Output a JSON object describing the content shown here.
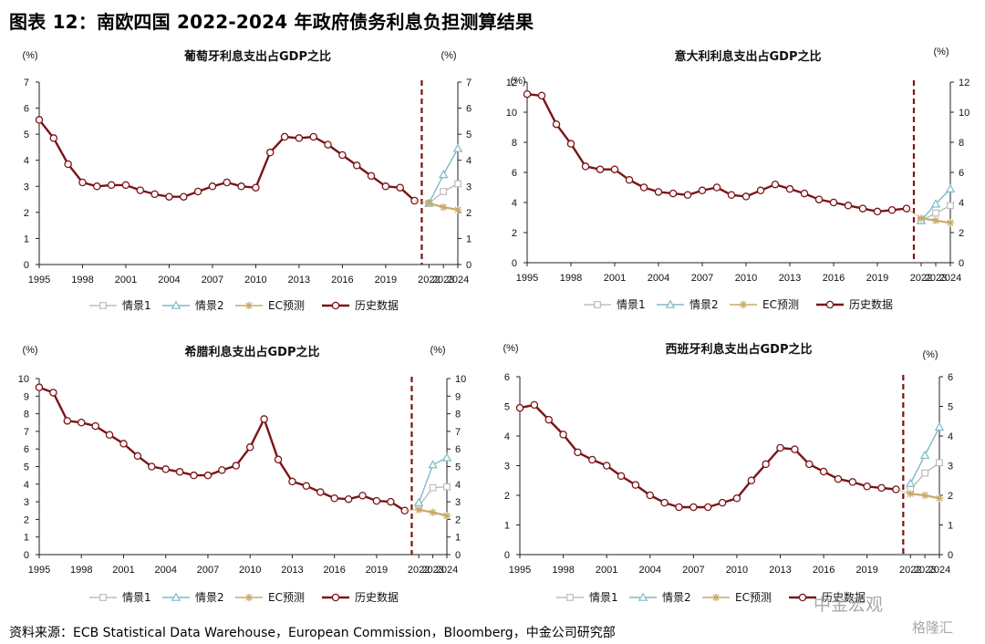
{
  "page": {
    "title": "图表 12：南欧四国 2022-2024 年政府债务利息负担测算结果",
    "source": "资料来源：ECB Statistical Data Warehouse，European Commission，Bloomberg，中金公司研究部",
    "watermark": "中金宏观",
    "watermark2": "格隆汇"
  },
  "colors": {
    "history": "#7b1416",
    "ec": "#c9a96a",
    "s1": "#bdbdbd",
    "s2": "#7fb9c9",
    "divider": "#7b1416"
  },
  "legend": [
    "情景1",
    "情景2",
    "EC预测",
    "历史数据"
  ],
  "chart_data": [
    {
      "type": "line",
      "title": "葡萄牙利息支出占GDP之比",
      "unit_left": "(%)",
      "unit_right": "(%)",
      "ylim": [
        0,
        7
      ],
      "yticks": [
        0,
        1,
        2,
        3,
        4,
        5,
        6,
        7
      ],
      "x_start": 1995,
      "x_end": 2024,
      "xticks": [
        1995,
        1998,
        2001,
        2004,
        2007,
        2010,
        2013,
        2016,
        2019,
        2022,
        2023,
        2024
      ],
      "divider": 2021.5,
      "series": [
        {
          "name": "历史数据",
          "x": [
            1995,
            1996,
            1997,
            1998,
            1999,
            2000,
            2001,
            2002,
            2003,
            2004,
            2005,
            2006,
            2007,
            2008,
            2009,
            2010,
            2011,
            2012,
            2013,
            2014,
            2015,
            2016,
            2017,
            2018,
            2019,
            2020,
            2021
          ],
          "values": [
            5.55,
            4.85,
            3.85,
            3.15,
            3.0,
            3.05,
            3.05,
            2.85,
            2.7,
            2.6,
            2.6,
            2.8,
            3.0,
            3.15,
            3.0,
            2.95,
            4.3,
            4.9,
            4.85,
            4.9,
            4.6,
            4.2,
            3.8,
            3.4,
            3.0,
            2.95,
            2.45
          ]
        },
        {
          "name": "EC预测",
          "x": [
            2022,
            2023,
            2024
          ],
          "values": [
            2.35,
            2.2,
            2.1
          ]
        },
        {
          "name": "情景1",
          "x": [
            2022,
            2023,
            2024
          ],
          "values": [
            2.35,
            2.8,
            3.1
          ]
        },
        {
          "name": "情景2",
          "x": [
            2022,
            2023,
            2024
          ],
          "values": [
            2.35,
            3.45,
            4.45
          ]
        }
      ]
    },
    {
      "type": "line",
      "title": "意大利利息支出占GDP之比",
      "unit_left": "(%)",
      "unit_right": "(%)",
      "ylim": [
        0,
        12
      ],
      "yticks": [
        0,
        2,
        4,
        6,
        8,
        10,
        12
      ],
      "x_start": 1995,
      "x_end": 2024,
      "xticks": [
        1995,
        1998,
        2001,
        2004,
        2007,
        2010,
        2013,
        2016,
        2019,
        2022,
        2023,
        2024
      ],
      "divider": 2021.5,
      "series": [
        {
          "name": "历史数据",
          "x": [
            1995,
            1996,
            1997,
            1998,
            1999,
            2000,
            2001,
            2002,
            2003,
            2004,
            2005,
            2006,
            2007,
            2008,
            2009,
            2010,
            2011,
            2012,
            2013,
            2014,
            2015,
            2016,
            2017,
            2018,
            2019,
            2020,
            2021
          ],
          "values": [
            11.2,
            11.1,
            9.2,
            7.9,
            6.4,
            6.2,
            6.2,
            5.5,
            5.0,
            4.7,
            4.6,
            4.5,
            4.8,
            5.0,
            4.5,
            4.4,
            4.8,
            5.2,
            4.9,
            4.6,
            4.2,
            4.0,
            3.8,
            3.6,
            3.4,
            3.5,
            3.6
          ]
        },
        {
          "name": "EC预测",
          "x": [
            2022,
            2023,
            2024
          ],
          "values": [
            2.95,
            2.8,
            2.65
          ]
        },
        {
          "name": "情景1",
          "x": [
            2022,
            2023,
            2024
          ],
          "values": [
            2.8,
            3.3,
            3.8
          ]
        },
        {
          "name": "情景2",
          "x": [
            2022,
            2023,
            2024
          ],
          "values": [
            2.8,
            3.9,
            4.9
          ]
        }
      ]
    },
    {
      "type": "line",
      "title": "希腊利息支出占GDP之比",
      "unit_left": "(%)",
      "unit_right": "(%)",
      "ylim": [
        0,
        10
      ],
      "yticks": [
        0,
        1,
        2,
        3,
        4,
        5,
        6,
        7,
        8,
        9,
        10
      ],
      "x_start": 1995,
      "x_end": 2024,
      "xticks": [
        1995,
        1998,
        2001,
        2004,
        2007,
        2010,
        2013,
        2016,
        2019,
        2022,
        2023,
        2024
      ],
      "divider": 2021.5,
      "series": [
        {
          "name": "历史数据",
          "x": [
            1995,
            1996,
            1997,
            1998,
            1999,
            2000,
            2001,
            2002,
            2003,
            2004,
            2005,
            2006,
            2007,
            2008,
            2009,
            2010,
            2011,
            2012,
            2013,
            2014,
            2015,
            2016,
            2017,
            2018,
            2019,
            2020,
            2021
          ],
          "values": [
            9.5,
            9.2,
            7.6,
            7.5,
            7.3,
            6.8,
            6.3,
            5.6,
            5.0,
            4.85,
            4.7,
            4.5,
            4.5,
            4.8,
            5.05,
            6.1,
            7.7,
            5.4,
            4.15,
            3.9,
            3.55,
            3.2,
            3.15,
            3.35,
            3.05,
            3.0,
            2.5
          ]
        },
        {
          "name": "EC预测",
          "x": [
            2022,
            2023,
            2024
          ],
          "values": [
            2.55,
            2.4,
            2.2
          ]
        },
        {
          "name": "情景1",
          "x": [
            2022,
            2023,
            2024
          ],
          "values": [
            2.75,
            3.8,
            3.85
          ]
        },
        {
          "name": "情景2",
          "x": [
            2022,
            2023,
            2024
          ],
          "values": [
            2.95,
            5.1,
            5.5
          ]
        }
      ]
    },
    {
      "type": "line",
      "title": "西班牙利息支出占GDP之比",
      "unit_left": "(%)",
      "unit_right": "(%)",
      "ylim": [
        0,
        6
      ],
      "yticks": [
        0,
        1,
        2,
        3,
        4,
        5,
        6
      ],
      "x_start": 1995,
      "x_end": 2024,
      "xticks": [
        1995,
        1998,
        2001,
        2004,
        2007,
        2010,
        2013,
        2016,
        2019,
        2022,
        2023,
        2024
      ],
      "divider": 2021.5,
      "series": [
        {
          "name": "历史数据",
          "x": [
            1995,
            1996,
            1997,
            1998,
            1999,
            2000,
            2001,
            2002,
            2003,
            2004,
            2005,
            2006,
            2007,
            2008,
            2009,
            2010,
            2011,
            2012,
            2013,
            2014,
            2015,
            2016,
            2017,
            2018,
            2019,
            2020,
            2021
          ],
          "values": [
            4.95,
            5.05,
            4.55,
            4.05,
            3.45,
            3.2,
            3.0,
            2.65,
            2.35,
            2.0,
            1.75,
            1.6,
            1.6,
            1.6,
            1.75,
            1.9,
            2.5,
            3.05,
            3.6,
            3.55,
            3.05,
            2.8,
            2.55,
            2.45,
            2.3,
            2.25,
            2.2
          ]
        },
        {
          "name": "EC预测",
          "x": [
            2022,
            2023,
            2024
          ],
          "values": [
            2.05,
            2.0,
            1.9
          ]
        },
        {
          "name": "情景1",
          "x": [
            2022,
            2023,
            2024
          ],
          "values": [
            2.2,
            2.75,
            3.1
          ]
        },
        {
          "name": "情景2",
          "x": [
            2022,
            2023,
            2024
          ],
          "values": [
            2.4,
            3.35,
            4.3
          ]
        }
      ]
    }
  ]
}
